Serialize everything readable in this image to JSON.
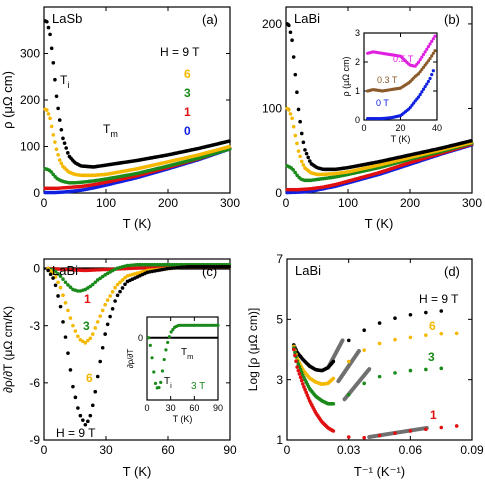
{
  "colors": {
    "black": "#000000",
    "orange": "#f5b800",
    "green": "#1a8a1a",
    "red": "#e01010",
    "blue": "#1020e0",
    "magenta": "#e020e0",
    "brown": "#8b5a2b",
    "gray": "#707070"
  },
  "chart_data": [
    {
      "type": "scatter",
      "panel_label": "(a)",
      "sample_label": "LaSb",
      "xlabel": "T (K)",
      "ylabel": "ρ (μΩ cm)",
      "xlim": [
        0,
        300
      ],
      "ylim": [
        0,
        400
      ],
      "xticks": [
        0,
        100,
        200,
        300
      ],
      "yticks": [
        0,
        100,
        200,
        300
      ],
      "legend_title": "H = 9 T",
      "legend": [
        "6",
        "3",
        "1",
        "0"
      ],
      "annotations": [
        "T_i",
        "T_m"
      ],
      "series": [
        {
          "name": "9 T",
          "color": "black",
          "x": [
            2,
            5,
            10,
            15,
            20,
            25,
            30,
            40,
            50,
            60,
            80,
            100,
            150,
            200,
            250,
            300
          ],
          "y": [
            370,
            368,
            340,
            280,
            210,
            160,
            120,
            80,
            65,
            58,
            56,
            60,
            70,
            82,
            96,
            112
          ]
        },
        {
          "name": "6",
          "color": "orange",
          "x": [
            2,
            5,
            10,
            15,
            20,
            25,
            30,
            40,
            50,
            60,
            80,
            100,
            150,
            200,
            250,
            300
          ],
          "y": [
            180,
            178,
            160,
            125,
            95,
            72,
            58,
            45,
            40,
            38,
            38,
            40,
            52,
            67,
            82,
            100
          ]
        },
        {
          "name": "3",
          "color": "green",
          "x": [
            2,
            5,
            10,
            15,
            20,
            25,
            30,
            40,
            50,
            60,
            80,
            100,
            150,
            200,
            250,
            300
          ],
          "y": [
            52,
            51,
            48,
            40,
            32,
            28,
            25,
            22,
            22,
            23,
            26,
            30,
            42,
            58,
            75,
            95
          ]
        },
        {
          "name": "1",
          "color": "red",
          "x": [
            2,
            10,
            20,
            30,
            40,
            60,
            80,
            100,
            150,
            200,
            250,
            300
          ],
          "y": [
            10,
            10,
            10,
            11,
            12,
            14,
            18,
            23,
            37,
            55,
            74,
            96
          ]
        },
        {
          "name": "0",
          "color": "blue",
          "x": [
            2,
            20,
            40,
            60,
            80,
            100,
            150,
            200,
            250,
            300
          ],
          "y": [
            1,
            1,
            3,
            6,
            11,
            17,
            33,
            52,
            72,
            95
          ]
        }
      ]
    },
    {
      "type": "scatter",
      "panel_label": "(b)",
      "sample_label": "LaBi",
      "xlabel": "T (K)",
      "ylabel": "",
      "xlim": [
        0,
        300
      ],
      "ylim": [
        0,
        220
      ],
      "xticks": [
        0,
        100,
        200,
        300
      ],
      "yticks": [
        0,
        100,
        200
      ],
      "series": [
        {
          "name": "9 T",
          "color": "black",
          "x": [
            2,
            5,
            10,
            15,
            20,
            25,
            30,
            40,
            50,
            60,
            80,
            100,
            150,
            200,
            250,
            300
          ],
          "y": [
            200,
            198,
            180,
            140,
            100,
            72,
            52,
            35,
            30,
            28,
            28,
            30,
            37,
            45,
            53,
            62
          ]
        },
        {
          "name": "6",
          "color": "orange",
          "x": [
            2,
            5,
            10,
            15,
            20,
            25,
            30,
            40,
            50,
            60,
            80,
            100,
            150,
            200,
            250,
            300
          ],
          "y": [
            100,
            98,
            88,
            68,
            50,
            38,
            30,
            24,
            22,
            22,
            23,
            25,
            33,
            42,
            51,
            60
          ]
        },
        {
          "name": "3",
          "color": "green",
          "x": [
            2,
            5,
            10,
            15,
            20,
            25,
            30,
            40,
            50,
            60,
            80,
            100,
            150,
            200,
            250,
            300
          ],
          "y": [
            32,
            31,
            29,
            24,
            19,
            16,
            15,
            15,
            16,
            17,
            19,
            22,
            30,
            40,
            49,
            59
          ]
        },
        {
          "name": "1",
          "color": "red",
          "x": [
            2,
            20,
            40,
            60,
            80,
            100,
            150,
            200,
            250,
            300
          ],
          "y": [
            4,
            4,
            5,
            7,
            10,
            14,
            24,
            36,
            47,
            58
          ]
        },
        {
          "name": "0",
          "color": "blue",
          "x": [
            2,
            20,
            40,
            60,
            80,
            100,
            150,
            200,
            250,
            300
          ],
          "y": [
            0.5,
            1,
            2,
            5,
            8,
            12,
            22,
            34,
            46,
            57
          ]
        }
      ],
      "inset": {
        "xlabel": "T (K)",
        "ylabel": "ρ (μΩ cm)",
        "xlim": [
          0,
          40
        ],
        "ylim": [
          0,
          3
        ],
        "xticks": [
          0,
          20,
          40
        ],
        "yticks": [
          0,
          1,
          2,
          3
        ],
        "series": [
          {
            "name": "0.5 T",
            "color": "magenta",
            "x": [
              2,
              5,
              10,
              15,
              20,
              25,
              28,
              30,
              33,
              36,
              39
            ],
            "y": [
              2.3,
              2.35,
              2.3,
              2.25,
              2.2,
              1.9,
              1.85,
              2.0,
              2.3,
              2.6,
              2.9
            ]
          },
          {
            "name": "0.3 T",
            "color": "brown",
            "x": [
              2,
              5,
              10,
              15,
              20,
              25,
              28,
              30,
              33,
              36,
              39
            ],
            "y": [
              1.0,
              1.05,
              1.0,
              1.05,
              1.1,
              1.3,
              1.5,
              1.6,
              1.85,
              2.1,
              2.4
            ]
          },
          {
            "name": "0 T",
            "color": "blue",
            "x": [
              2,
              5,
              10,
              15,
              20,
              25,
              28,
              30,
              33,
              36,
              38
            ],
            "y": [
              0.05,
              0.05,
              0.05,
              0.08,
              0.15,
              0.4,
              0.65,
              0.8,
              1.1,
              1.4,
              1.7
            ]
          }
        ]
      }
    },
    {
      "type": "scatter",
      "panel_label": "(c)",
      "sample_label": "LaBi",
      "xlabel": "T (K)",
      "ylabel": "∂ρ/∂T (μΩ cm/K)",
      "xlim": [
        0,
        90
      ],
      "ylim": [
        -9,
        0.5
      ],
      "xticks": [
        0,
        30,
        60,
        90
      ],
      "yticks": [
        0,
        -3,
        -6,
        -9
      ],
      "legend_title": "H = 9 T",
      "series": [
        {
          "name": "9 T",
          "color": "black",
          "x": [
            2,
            5,
            8,
            11,
            14,
            17,
            20,
            22,
            24,
            27,
            30,
            35,
            40,
            50,
            60,
            70,
            80,
            90
          ],
          "y": [
            -0.1,
            -0.6,
            -2.0,
            -4.0,
            -6.2,
            -7.6,
            -8.2,
            -7.9,
            -7.0,
            -5.0,
            -3.2,
            -1.5,
            -0.7,
            -0.2,
            0,
            0.1,
            0.1,
            0.1
          ]
        },
        {
          "name": "6",
          "color": "orange",
          "x": [
            2,
            5,
            8,
            11,
            14,
            17,
            20,
            23,
            26,
            30,
            35,
            40,
            50,
            60,
            70,
            80,
            90
          ],
          "y": [
            0,
            -0.3,
            -1.0,
            -2.0,
            -3.0,
            -3.7,
            -3.9,
            -3.6,
            -2.8,
            -1.8,
            -0.9,
            -0.4,
            -0.1,
            0,
            0.1,
            0.1,
            0.1
          ]
        },
        {
          "name": "3",
          "color": "green",
          "x": [
            2,
            5,
            8,
            11,
            14,
            17,
            20,
            23,
            26,
            30,
            35,
            40,
            45,
            50,
            60,
            70,
            80,
            90
          ],
          "y": [
            0,
            -0.1,
            -0.4,
            -0.8,
            -1.1,
            -1.2,
            -1.1,
            -0.9,
            -0.6,
            -0.3,
            0,
            0.15,
            0.2,
            0.2,
            0.2,
            0.2,
            0.2,
            0.2
          ]
        },
        {
          "name": "1",
          "color": "red",
          "x": [
            2,
            10,
            20,
            30,
            40,
            50,
            60,
            70,
            80,
            90
          ],
          "y": [
            0,
            -0.05,
            -0.1,
            -0.05,
            0,
            0.05,
            0.05,
            0.1,
            0.1,
            0.1
          ]
        }
      ],
      "series_labels": [
        "1",
        "3",
        "6",
        "H = 9 T"
      ],
      "inset": {
        "xlabel": "T (K)",
        "ylabel": "∂ρ/∂T",
        "xlim": [
          0,
          90
        ],
        "ylim": [
          -0.06,
          0.02
        ],
        "xticks": [
          0,
          30,
          60,
          90
        ],
        "yticks": [
          0
        ],
        "annotations": [
          "T_m",
          "T_i",
          "3 T"
        ],
        "series": [
          {
            "name": "3 T",
            "color": "green",
            "x": [
              2,
              5,
              8,
              11,
              14,
              17,
              20,
              23,
              26,
              30,
              35,
              40,
              50,
              60,
              70,
              80,
              90
            ],
            "y": [
              0,
              -0.01,
              -0.03,
              -0.045,
              -0.05,
              -0.045,
              -0.03,
              -0.015,
              -0.005,
              0.005,
              0.01,
              0.012,
              0.012,
              0.012,
              0.012,
              0.012,
              0.012
            ]
          }
        ]
      }
    },
    {
      "type": "scatter",
      "panel_label": "(d)",
      "sample_label": "LaBi",
      "xlabel": "T⁻¹ (K⁻¹)",
      "ylabel": "Log [ρ (μΩ cm)]",
      "xlim": [
        0,
        0.09
      ],
      "ylim": [
        1,
        7
      ],
      "xticks": [
        0,
        0.03,
        0.06,
        0.09
      ],
      "yticks": [
        1,
        3,
        5,
        7
      ],
      "legend_title": "H = 9 T",
      "series": [
        {
          "name": "9 T",
          "color": "black",
          "x": [
            0.0033,
            0.005,
            0.008,
            0.011,
            0.014,
            0.017,
            0.02,
            0.025,
            0.03,
            0.04,
            0.05,
            0.06,
            0.07,
            0.08
          ],
          "y": [
            4.15,
            3.9,
            3.65,
            3.45,
            3.33,
            3.3,
            3.4,
            3.8,
            4.3,
            4.75,
            5.0,
            5.15,
            5.25,
            5.3
          ]
        },
        {
          "name": "6",
          "color": "orange",
          "x": [
            0.0033,
            0.005,
            0.008,
            0.011,
            0.014,
            0.017,
            0.02,
            0.025,
            0.03,
            0.04,
            0.05,
            0.06,
            0.07,
            0.08,
            0.088
          ],
          "y": [
            4.1,
            3.7,
            3.3,
            3.05,
            2.92,
            2.85,
            2.88,
            3.2,
            3.6,
            4.1,
            4.3,
            4.4,
            4.5,
            4.55,
            4.5
          ]
        },
        {
          "name": "3",
          "color": "green",
          "x": [
            0.0033,
            0.005,
            0.008,
            0.011,
            0.014,
            0.017,
            0.02,
            0.025,
            0.03,
            0.04,
            0.05,
            0.06,
            0.07,
            0.08
          ],
          "y": [
            4.05,
            3.6,
            3.1,
            2.7,
            2.45,
            2.3,
            2.2,
            2.2,
            2.5,
            3.0,
            3.2,
            3.3,
            3.35,
            3.4
          ]
        },
        {
          "name": "1",
          "color": "red",
          "x": [
            0.0033,
            0.005,
            0.008,
            0.011,
            0.014,
            0.017,
            0.02,
            0.025,
            0.03,
            0.035,
            0.04,
            0.06,
            0.08,
            0.088
          ],
          "y": [
            4.0,
            3.4,
            2.8,
            2.3,
            1.9,
            1.6,
            1.4,
            1.2,
            1.1,
            1.05,
            1.1,
            1.3,
            1.45,
            1.5
          ]
        }
      ],
      "fit_lines": [
        {
          "color": "gray",
          "x": [
            0.02,
            0.027
          ],
          "y": [
            3.4,
            4.3
          ]
        },
        {
          "color": "gray",
          "x": [
            0.025,
            0.035
          ],
          "y": [
            2.95,
            3.95
          ]
        },
        {
          "color": "gray",
          "x": [
            0.028,
            0.04
          ],
          "y": [
            2.35,
            3.35
          ]
        },
        {
          "color": "gray",
          "x": [
            0.04,
            0.068
          ],
          "y": [
            1.1,
            1.4
          ]
        }
      ],
      "series_labels": [
        "H = 9 T",
        "6",
        "3",
        "1"
      ]
    }
  ]
}
